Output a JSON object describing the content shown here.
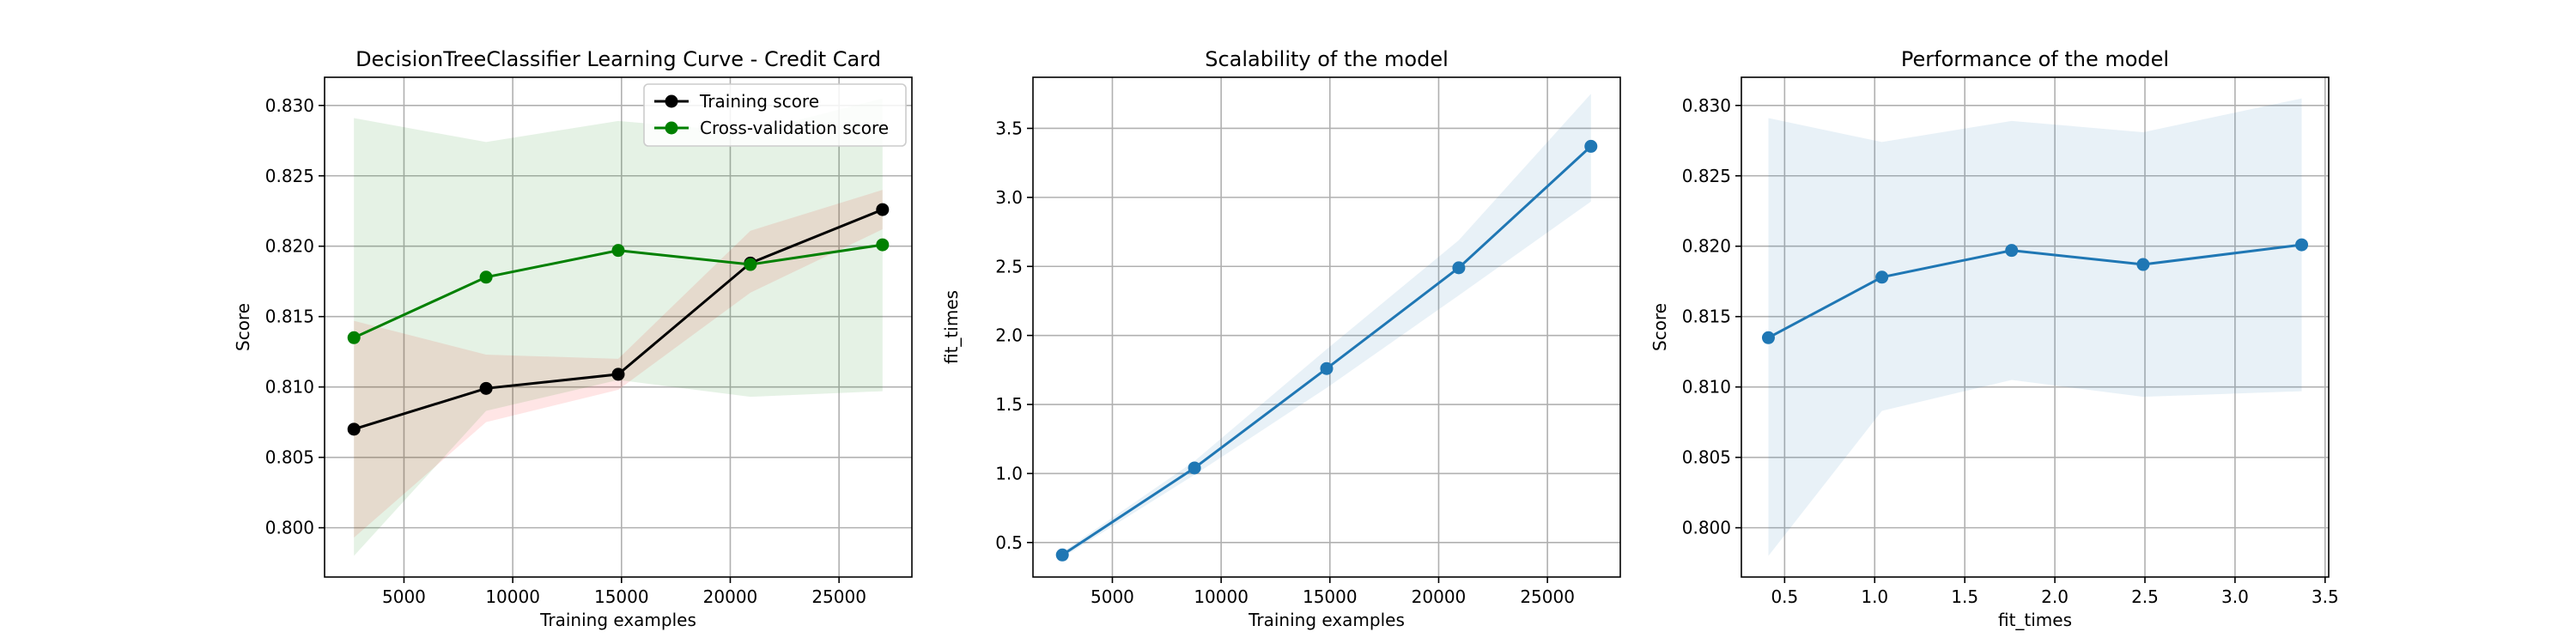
{
  "chart_data": [
    {
      "type": "line",
      "title": "DecisionTreeClassifier Learning Curve - Credit Card",
      "xlabel": "Training examples",
      "ylabel": "Score",
      "xlim": [
        1350,
        28350
      ],
      "ylim": [
        0.7965,
        0.832
      ],
      "xticks": [
        5000,
        10000,
        15000,
        20000,
        25000
      ],
      "xtick_labels": [
        "5000",
        "10000",
        "15000",
        "20000",
        "25000"
      ],
      "yticks": [
        0.8,
        0.805,
        0.81,
        0.815,
        0.82,
        0.825,
        0.83
      ],
      "ytick_labels": [
        "0.800",
        "0.805",
        "0.810",
        "0.815",
        "0.820",
        "0.825",
        "0.830"
      ],
      "grid": true,
      "legend": "top-right",
      "x": [
        2700,
        8775,
        14850,
        20925,
        27000
      ],
      "series": [
        {
          "name": "Training score",
          "color": "#000000",
          "fill_color": "#ff0000",
          "values": [
            0.807,
            0.8099,
            0.8109,
            0.8188,
            0.8226
          ],
          "lower": [
            0.7993,
            0.8075,
            0.8098,
            0.8167,
            0.8212
          ],
          "upper": [
            0.8147,
            0.8123,
            0.812,
            0.8211,
            0.824
          ]
        },
        {
          "name": "Cross-validation score",
          "color": "#008000",
          "fill_color": "#008000",
          "values": [
            0.8135,
            0.8178,
            0.8197,
            0.8187,
            0.8201
          ],
          "lower": [
            0.798,
            0.8083,
            0.8105,
            0.8093,
            0.8097
          ],
          "upper": [
            0.8291,
            0.8274,
            0.8289,
            0.8281,
            0.8305
          ]
        }
      ]
    },
    {
      "type": "line",
      "title": "Scalability of the model",
      "xlabel": "Training examples",
      "ylabel": "fit_times",
      "xlim": [
        1350,
        28350
      ],
      "ylim": [
        0.25,
        3.87
      ],
      "xticks": [
        5000,
        10000,
        15000,
        20000,
        25000
      ],
      "xtick_labels": [
        "5000",
        "10000",
        "15000",
        "20000",
        "25000"
      ],
      "yticks": [
        0.5,
        1.0,
        1.5,
        2.0,
        2.5,
        3.0,
        3.5
      ],
      "ytick_labels": [
        "0.5",
        "1.0",
        "1.5",
        "2.0",
        "2.5",
        "3.0",
        "3.5"
      ],
      "grid": true,
      "x": [
        2700,
        8775,
        14850,
        20925,
        27000
      ],
      "series": [
        {
          "color": "#1f77b4",
          "fill_color": "#1f77b4",
          "values": [
            0.41,
            1.04,
            1.76,
            2.49,
            3.37
          ],
          "lower": [
            0.39,
            0.99,
            1.62,
            2.29,
            2.97
          ],
          "upper": [
            0.43,
            1.09,
            1.9,
            2.69,
            3.75
          ]
        }
      ]
    },
    {
      "type": "line",
      "title": "Performance of the model",
      "xlabel": "fit_times",
      "ylabel": "Score",
      "xlim": [
        0.26,
        3.52
      ],
      "ylim": [
        0.7965,
        0.832
      ],
      "xticks": [
        0.5,
        1.0,
        1.5,
        2.0,
        2.5,
        3.0,
        3.5
      ],
      "xtick_labels": [
        "0.5",
        "1.0",
        "1.5",
        "2.0",
        "2.5",
        "3.0",
        "3.5"
      ],
      "yticks": [
        0.8,
        0.805,
        0.81,
        0.815,
        0.82,
        0.825,
        0.83
      ],
      "ytick_labels": [
        "0.800",
        "0.805",
        "0.810",
        "0.815",
        "0.820",
        "0.825",
        "0.830"
      ],
      "grid": true,
      "x": [
        0.41,
        1.04,
        1.76,
        2.49,
        3.37
      ],
      "series": [
        {
          "color": "#1f77b4",
          "fill_color": "#1f77b4",
          "values": [
            0.8135,
            0.8178,
            0.8197,
            0.8187,
            0.8201
          ],
          "lower": [
            0.798,
            0.8083,
            0.8105,
            0.8093,
            0.8097
          ],
          "upper": [
            0.8291,
            0.8274,
            0.8289,
            0.8281,
            0.8305
          ]
        }
      ]
    }
  ]
}
